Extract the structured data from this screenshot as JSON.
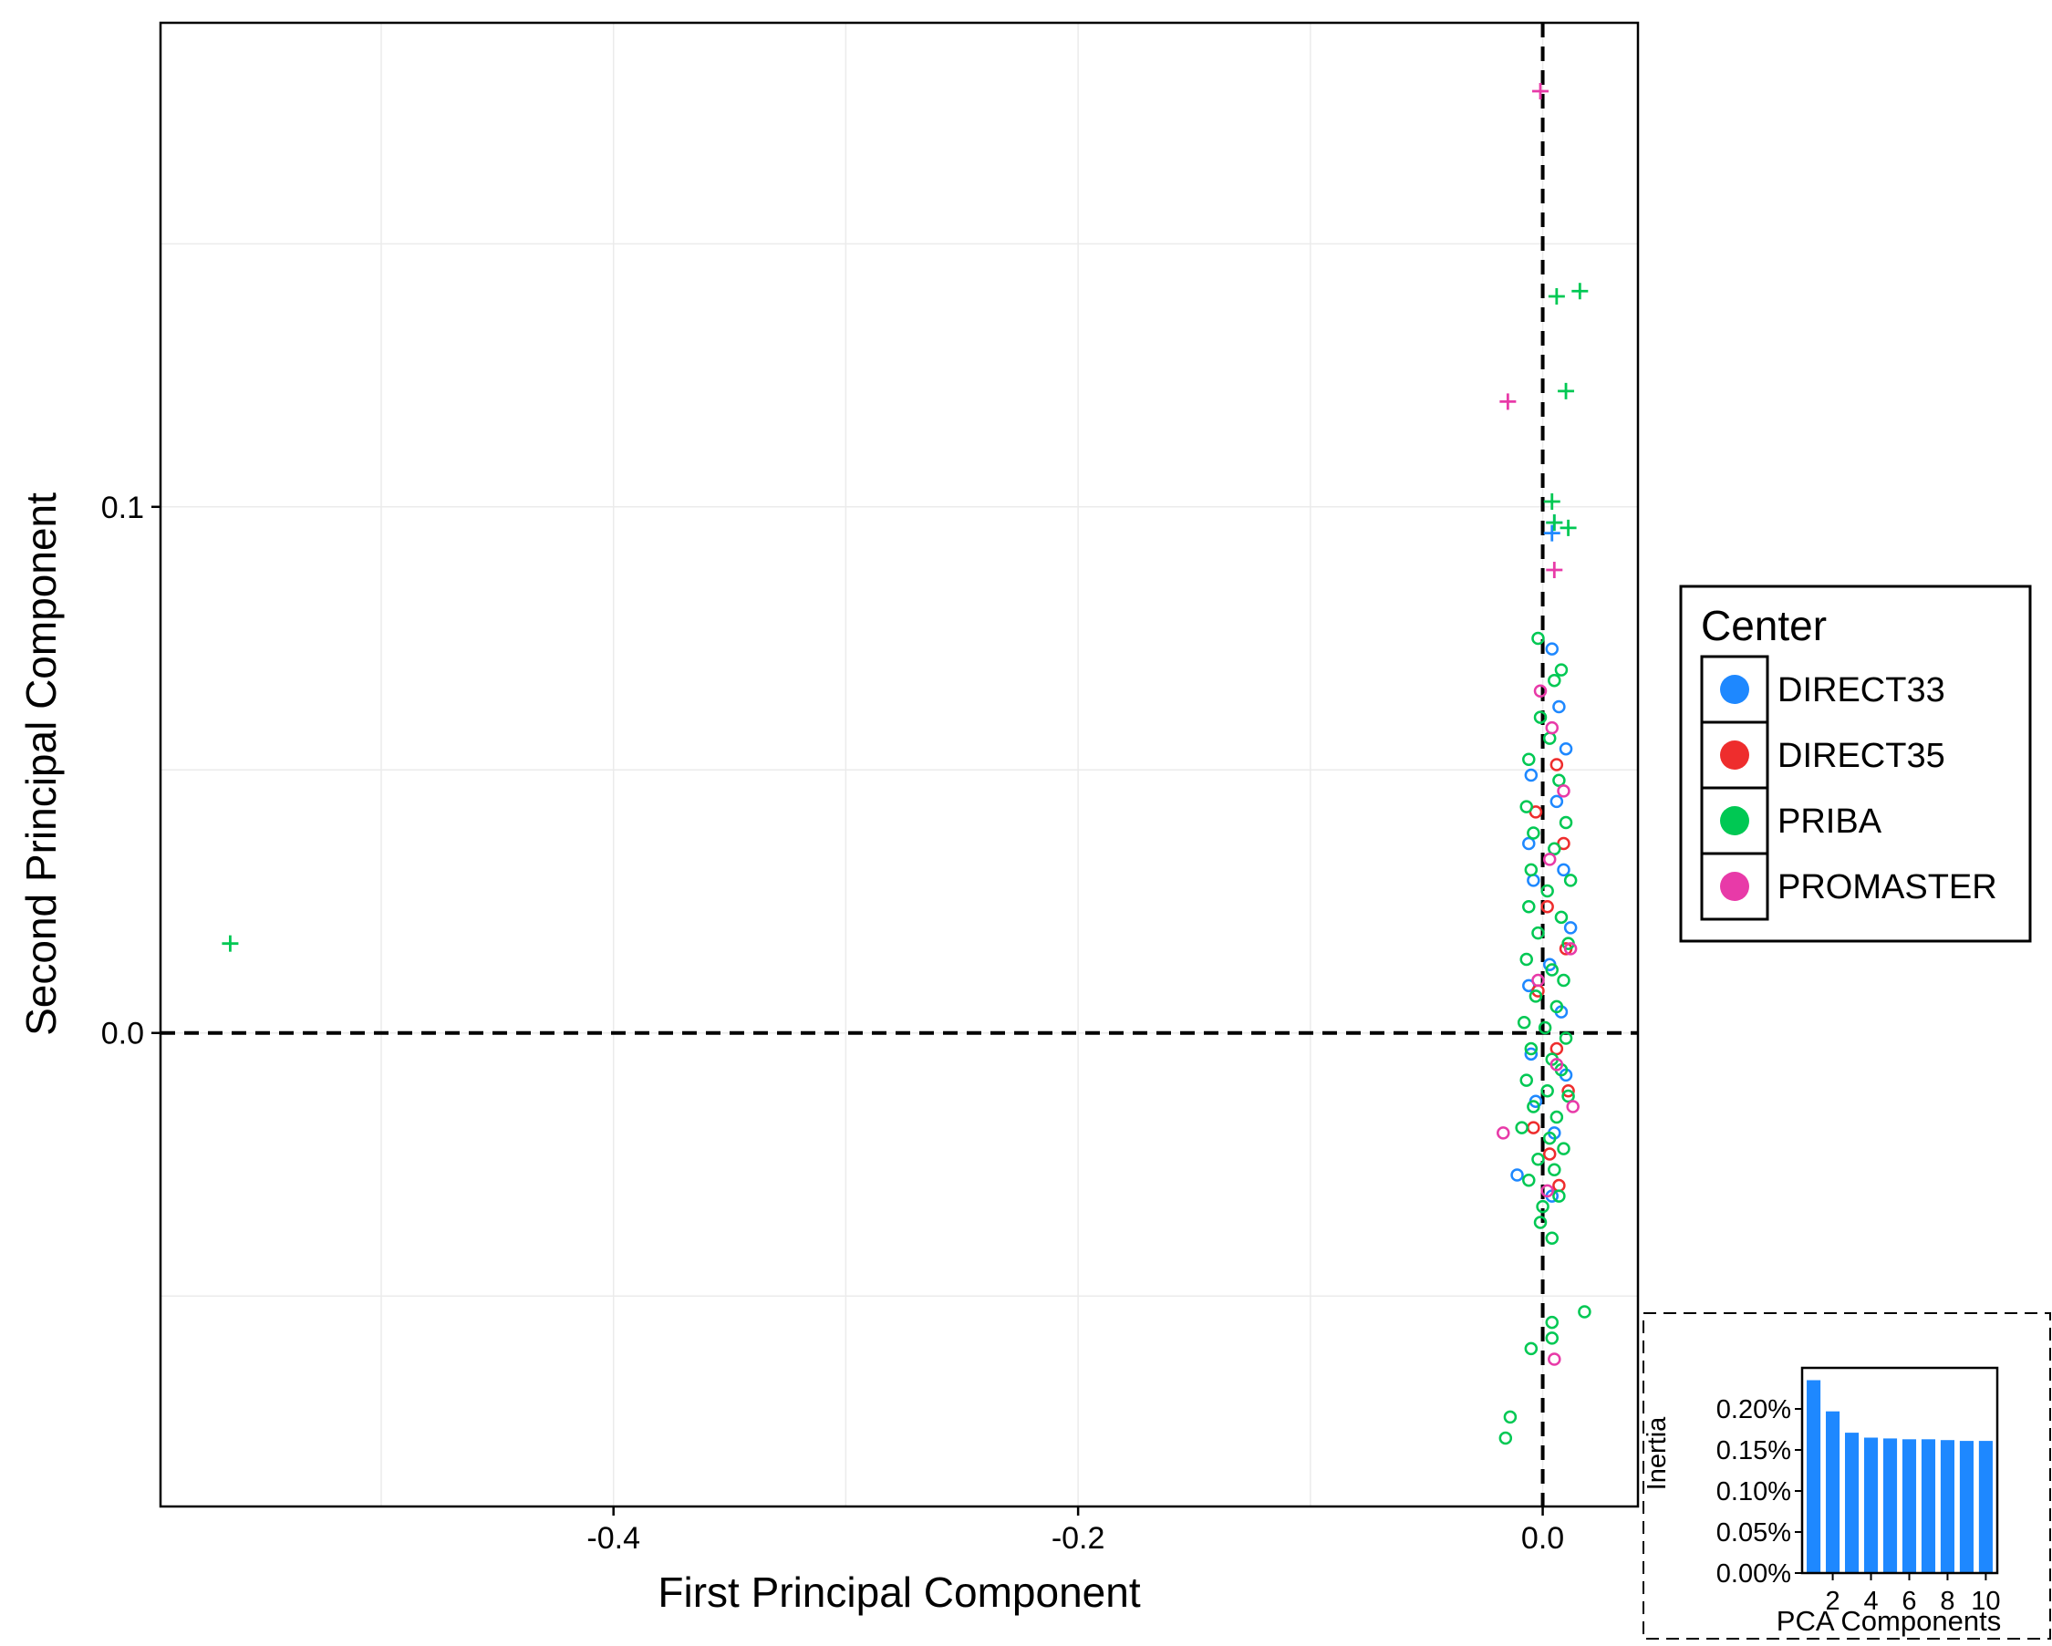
{
  "chart_data": [
    {
      "type": "scatter",
      "xlabel": "First Principal Component",
      "ylabel": "Second Principal Component",
      "xlim": [
        -0.595,
        0.041
      ],
      "ylim": [
        -0.09,
        0.192
      ],
      "xticks": [
        -0.4,
        -0.2,
        0.0
      ],
      "xtick_labels": [
        "-0.4",
        "-0.2",
        "0.0"
      ],
      "yticks": [
        0.0,
        0.1
      ],
      "ytick_labels": [
        "0.0",
        "0.1"
      ],
      "grid": true,
      "reference_lines": [
        {
          "axis": "x",
          "value": 0.0,
          "style": "dashed"
        },
        {
          "axis": "y",
          "value": 0.0,
          "style": "dashed"
        }
      ],
      "legend": {
        "title": "Center",
        "placement": "right",
        "entries": [
          {
            "label": "DIRECT33",
            "color": "#1e88ff"
          },
          {
            "label": "DIRECT35",
            "color": "#ee2d2d"
          },
          {
            "label": "PRIBA",
            "color": "#00c853"
          },
          {
            "label": "PROMASTER",
            "color": "#e83aa8"
          }
        ]
      },
      "series": [
        {
          "name": "DIRECT33",
          "color": "#1e88ff",
          "points": [
            {
              "x": 0.004,
              "y": 0.073,
              "marker": "circle"
            },
            {
              "x": 0.007,
              "y": 0.062,
              "marker": "circle"
            },
            {
              "x": 0.01,
              "y": 0.054,
              "marker": "circle"
            },
            {
              "x": -0.005,
              "y": 0.049,
              "marker": "circle"
            },
            {
              "x": 0.006,
              "y": 0.044,
              "marker": "circle"
            },
            {
              "x": -0.006,
              "y": 0.036,
              "marker": "circle"
            },
            {
              "x": 0.009,
              "y": 0.031,
              "marker": "circle"
            },
            {
              "x": -0.004,
              "y": 0.029,
              "marker": "circle"
            },
            {
              "x": 0.012,
              "y": 0.02,
              "marker": "circle"
            },
            {
              "x": 0.003,
              "y": 0.013,
              "marker": "circle"
            },
            {
              "x": -0.006,
              "y": 0.009,
              "marker": "circle"
            },
            {
              "x": 0.008,
              "y": 0.004,
              "marker": "circle"
            },
            {
              "x": -0.005,
              "y": -0.004,
              "marker": "circle"
            },
            {
              "x": 0.01,
              "y": -0.008,
              "marker": "circle"
            },
            {
              "x": -0.003,
              "y": -0.013,
              "marker": "circle"
            },
            {
              "x": 0.005,
              "y": -0.019,
              "marker": "circle"
            },
            {
              "x": -0.011,
              "y": -0.027,
              "marker": "circle"
            },
            {
              "x": 0.004,
              "y": -0.031,
              "marker": "circle"
            },
            {
              "x": 0.004,
              "y": 0.095,
              "marker": "plus"
            },
            {
              "x": 0.005,
              "y": 0.097,
              "marker": "plus"
            }
          ]
        },
        {
          "name": "DIRECT35",
          "color": "#ee2d2d",
          "points": [
            {
              "x": 0.006,
              "y": 0.051,
              "marker": "circle"
            },
            {
              "x": -0.003,
              "y": 0.042,
              "marker": "circle"
            },
            {
              "x": 0.009,
              "y": 0.036,
              "marker": "circle"
            },
            {
              "x": 0.002,
              "y": 0.024,
              "marker": "circle"
            },
            {
              "x": 0.01,
              "y": 0.016,
              "marker": "circle"
            },
            {
              "x": -0.002,
              "y": 0.008,
              "marker": "circle"
            },
            {
              "x": 0.006,
              "y": -0.003,
              "marker": "circle"
            },
            {
              "x": 0.011,
              "y": -0.011,
              "marker": "circle"
            },
            {
              "x": -0.004,
              "y": -0.018,
              "marker": "circle"
            },
            {
              "x": 0.003,
              "y": -0.023,
              "marker": "circle"
            },
            {
              "x": 0.007,
              "y": -0.029,
              "marker": "circle"
            }
          ]
        },
        {
          "name": "PRIBA",
          "color": "#00c853",
          "points": [
            {
              "x": -0.002,
              "y": 0.075,
              "marker": "circle"
            },
            {
              "x": 0.008,
              "y": 0.069,
              "marker": "circle"
            },
            {
              "x": 0.005,
              "y": 0.067,
              "marker": "circle"
            },
            {
              "x": -0.001,
              "y": 0.06,
              "marker": "circle"
            },
            {
              "x": 0.003,
              "y": 0.056,
              "marker": "circle"
            },
            {
              "x": -0.006,
              "y": 0.052,
              "marker": "circle"
            },
            {
              "x": 0.007,
              "y": 0.048,
              "marker": "circle"
            },
            {
              "x": -0.007,
              "y": 0.043,
              "marker": "circle"
            },
            {
              "x": 0.01,
              "y": 0.04,
              "marker": "circle"
            },
            {
              "x": -0.004,
              "y": 0.038,
              "marker": "circle"
            },
            {
              "x": 0.005,
              "y": 0.035,
              "marker": "circle"
            },
            {
              "x": -0.005,
              "y": 0.031,
              "marker": "circle"
            },
            {
              "x": 0.012,
              "y": 0.029,
              "marker": "circle"
            },
            {
              "x": 0.002,
              "y": 0.027,
              "marker": "circle"
            },
            {
              "x": -0.006,
              "y": 0.024,
              "marker": "circle"
            },
            {
              "x": 0.008,
              "y": 0.022,
              "marker": "circle"
            },
            {
              "x": -0.002,
              "y": 0.019,
              "marker": "circle"
            },
            {
              "x": 0.011,
              "y": 0.017,
              "marker": "circle"
            },
            {
              "x": -0.007,
              "y": 0.014,
              "marker": "circle"
            },
            {
              "x": 0.004,
              "y": 0.012,
              "marker": "circle"
            },
            {
              "x": 0.009,
              "y": 0.01,
              "marker": "circle"
            },
            {
              "x": -0.003,
              "y": 0.007,
              "marker": "circle"
            },
            {
              "x": 0.006,
              "y": 0.005,
              "marker": "circle"
            },
            {
              "x": -0.008,
              "y": 0.002,
              "marker": "circle"
            },
            {
              "x": 0.001,
              "y": 0.001,
              "marker": "circle"
            },
            {
              "x": 0.01,
              "y": -0.001,
              "marker": "circle"
            },
            {
              "x": -0.005,
              "y": -0.003,
              "marker": "circle"
            },
            {
              "x": 0.004,
              "y": -0.005,
              "marker": "circle"
            },
            {
              "x": 0.008,
              "y": -0.007,
              "marker": "circle"
            },
            {
              "x": -0.007,
              "y": -0.009,
              "marker": "circle"
            },
            {
              "x": 0.002,
              "y": -0.011,
              "marker": "circle"
            },
            {
              "x": 0.011,
              "y": -0.012,
              "marker": "circle"
            },
            {
              "x": -0.004,
              "y": -0.014,
              "marker": "circle"
            },
            {
              "x": 0.006,
              "y": -0.016,
              "marker": "circle"
            },
            {
              "x": -0.009,
              "y": -0.018,
              "marker": "circle"
            },
            {
              "x": 0.003,
              "y": -0.02,
              "marker": "circle"
            },
            {
              "x": 0.009,
              "y": -0.022,
              "marker": "circle"
            },
            {
              "x": -0.002,
              "y": -0.024,
              "marker": "circle"
            },
            {
              "x": 0.005,
              "y": -0.026,
              "marker": "circle"
            },
            {
              "x": -0.006,
              "y": -0.028,
              "marker": "circle"
            },
            {
              "x": 0.007,
              "y": -0.031,
              "marker": "circle"
            },
            {
              "x": 0.0,
              "y": -0.033,
              "marker": "circle"
            },
            {
              "x": -0.001,
              "y": -0.036,
              "marker": "circle"
            },
            {
              "x": 0.004,
              "y": -0.039,
              "marker": "circle"
            },
            {
              "x": 0.018,
              "y": -0.053,
              "marker": "circle"
            },
            {
              "x": 0.004,
              "y": -0.055,
              "marker": "circle"
            },
            {
              "x": 0.004,
              "y": -0.058,
              "marker": "circle"
            },
            {
              "x": -0.005,
              "y": -0.06,
              "marker": "circle"
            },
            {
              "x": -0.014,
              "y": -0.073,
              "marker": "circle"
            },
            {
              "x": -0.016,
              "y": -0.077,
              "marker": "circle"
            },
            {
              "x": 0.016,
              "y": 0.141,
              "marker": "plus"
            },
            {
              "x": 0.006,
              "y": 0.14,
              "marker": "plus"
            },
            {
              "x": 0.01,
              "y": 0.122,
              "marker": "plus"
            },
            {
              "x": 0.004,
              "y": 0.101,
              "marker": "plus"
            },
            {
              "x": 0.011,
              "y": 0.096,
              "marker": "plus"
            },
            {
              "x": 0.005,
              "y": 0.097,
              "marker": "plus"
            },
            {
              "x": -0.565,
              "y": 0.017,
              "marker": "plus"
            }
          ]
        },
        {
          "name": "PROMASTER",
          "color": "#e83aa8",
          "points": [
            {
              "x": -0.001,
              "y": 0.065,
              "marker": "circle"
            },
            {
              "x": 0.004,
              "y": 0.058,
              "marker": "circle"
            },
            {
              "x": 0.009,
              "y": 0.046,
              "marker": "circle"
            },
            {
              "x": 0.003,
              "y": 0.033,
              "marker": "circle"
            },
            {
              "x": 0.012,
              "y": 0.016,
              "marker": "circle"
            },
            {
              "x": -0.002,
              "y": 0.01,
              "marker": "circle"
            },
            {
              "x": 0.006,
              "y": -0.006,
              "marker": "circle"
            },
            {
              "x": -0.017,
              "y": -0.019,
              "marker": "circle"
            },
            {
              "x": 0.013,
              "y": -0.014,
              "marker": "circle"
            },
            {
              "x": 0.002,
              "y": -0.03,
              "marker": "circle"
            },
            {
              "x": 0.005,
              "y": -0.062,
              "marker": "circle"
            },
            {
              "x": -0.001,
              "y": 0.179,
              "marker": "plus"
            },
            {
              "x": -0.015,
              "y": 0.12,
              "marker": "plus"
            },
            {
              "x": 0.005,
              "y": 0.088,
              "marker": "plus"
            }
          ]
        }
      ]
    },
    {
      "type": "bar",
      "xlabel": "PCA Components",
      "ylabel": "Inertia",
      "categories": [
        1,
        2,
        3,
        4,
        5,
        6,
        7,
        8,
        9,
        10
      ],
      "values": [
        0.235,
        0.197,
        0.171,
        0.165,
        0.164,
        0.163,
        0.163,
        0.162,
        0.161,
        0.161
      ],
      "ylim": [
        0,
        0.25
      ],
      "yticks": [
        0,
        0.05,
        0.1,
        0.15,
        0.2
      ],
      "ytick_labels": [
        "0.00%",
        "0.05%",
        "0.10%",
        "0.15%",
        "0.20%"
      ],
      "xticks": [
        2,
        4,
        6,
        8,
        10
      ],
      "xtick_labels": [
        "2",
        "4",
        "6",
        "8",
        "10"
      ],
      "bar_color": "#1e88ff"
    }
  ]
}
